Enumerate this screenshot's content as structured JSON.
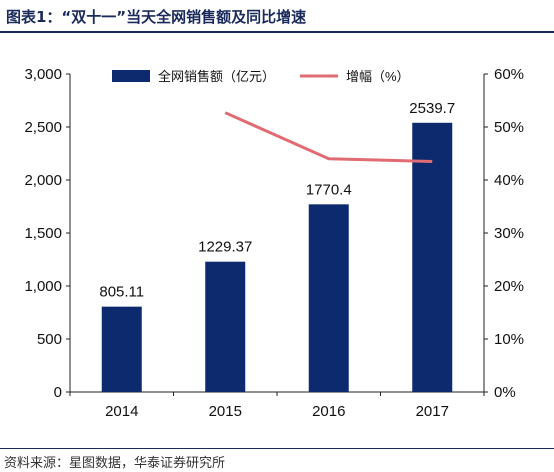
{
  "header": {
    "title": "图表1：“双十一”当天全网销售额及同比增速"
  },
  "footer": {
    "source": "资料来源：星图数据，华泰证券研究所"
  },
  "chart_data": {
    "type": "bar",
    "categories": [
      "2014",
      "2015",
      "2016",
      "2017"
    ],
    "series": [
      {
        "name": "全网销售额（亿元）",
        "type": "bar",
        "axis": "left",
        "values": [
          805.11,
          1229.37,
          1770.4,
          2539.7
        ],
        "labels": [
          "805.11",
          "1229.37",
          "1770.4",
          "2539.7"
        ],
        "color": "#0d2a6e"
      },
      {
        "name": "增幅（%）",
        "type": "line",
        "axis": "right",
        "values": [
          null,
          52.7,
          44.0,
          43.5
        ],
        "color": "#e06b73"
      }
    ],
    "y_left": {
      "lim": [
        0,
        3000
      ],
      "ticks": [
        0,
        500,
        1000,
        1500,
        2000,
        2500,
        3000
      ],
      "tick_labels": [
        "0",
        "500",
        "1,000",
        "1,500",
        "2,000",
        "2,500",
        "3,000"
      ]
    },
    "y_right": {
      "lim": [
        0,
        60
      ],
      "ticks": [
        0,
        10,
        20,
        30,
        40,
        50,
        60
      ],
      "tick_labels": [
        "0%",
        "10%",
        "20%",
        "30%",
        "40%",
        "50%",
        "60%"
      ]
    },
    "grid": false,
    "legend": "top"
  }
}
